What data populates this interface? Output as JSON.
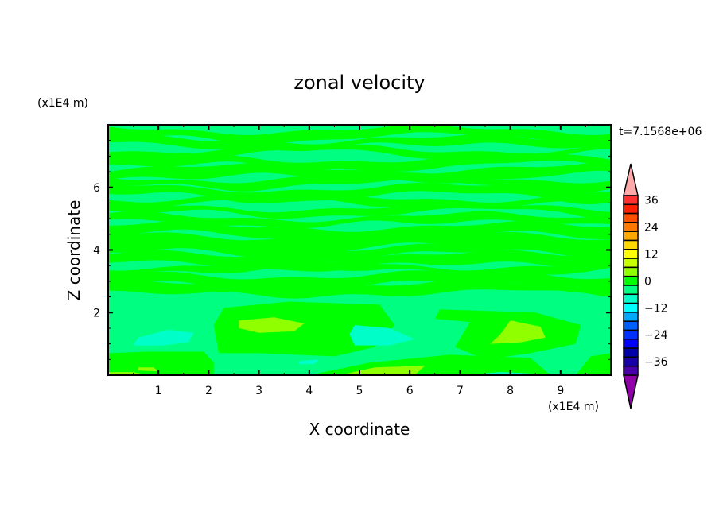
{
  "chart_data": {
    "type": "heatmap",
    "subtype": "filled-contour",
    "title": "zonal velocity",
    "xlabel": "X coordinate",
    "ylabel": "Z coordinate",
    "x_unit": "(x1E4 m)",
    "y_unit": "(x1E4 m)",
    "time_label": "t=7.1568e+06",
    "xlim": [
      0,
      10
    ],
    "ylim": [
      0,
      8
    ],
    "xticks": [
      1,
      2,
      3,
      4,
      5,
      6,
      7,
      8,
      9
    ],
    "yticks": [
      2,
      4,
      6
    ],
    "grid": false,
    "colorbar": {
      "levels_min": -40,
      "levels_max": 40,
      "step": 4,
      "tick_labels": [
        "36",
        "24",
        "12",
        "0",
        "-12",
        "-24",
        "-36"
      ],
      "tick_values": [
        36,
        24,
        12,
        0,
        -12,
        -24,
        -36
      ],
      "over_color": "#ffaaaa",
      "under_color": "#9000a8",
      "colors_top_to_bottom": [
        "#ff3030",
        "#ff2000",
        "#ff5000",
        "#ff7800",
        "#ffa800",
        "#ffd800",
        "#ffff00",
        "#c8ff00",
        "#90ff00",
        "#00ff00",
        "#00ff80",
        "#00ffc8",
        "#00ffff",
        "#00a8ff",
        "#0060ff",
        "#0030ff",
        "#0000ff",
        "#0000a8",
        "#1800a8",
        "#4800a8"
      ]
    },
    "field_colors": {
      "range_-8_-4": "#00ffc8",
      "range_-4_0": "#00ff80",
      "range_0_4": "#00ff00",
      "range_4_8": "#90ff00"
    }
  }
}
